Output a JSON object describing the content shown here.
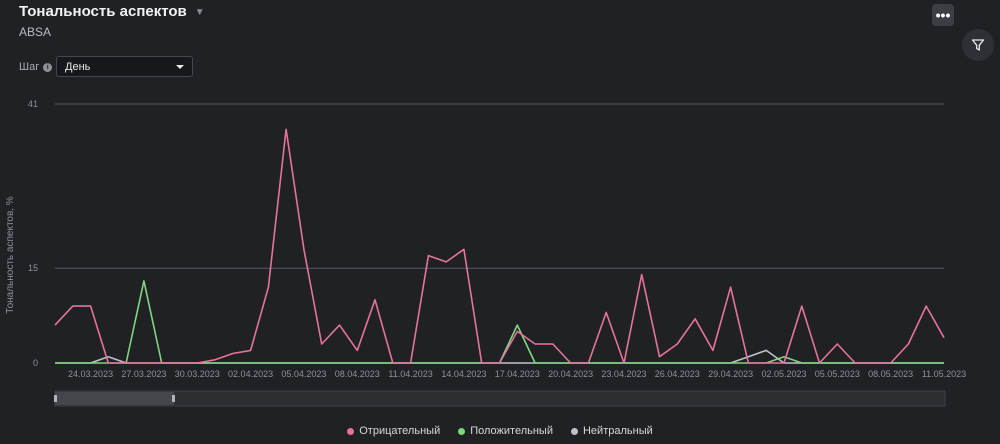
{
  "header": {
    "title": "Тональность аспектов",
    "subtitle": "ABSA",
    "menu_icon": "ellipsis-icon",
    "filter_icon": "filter-icon"
  },
  "controls": {
    "step_label": "Шаг",
    "step_value": "День"
  },
  "colors": {
    "background": "#1f2124",
    "negative": "#e5739e",
    "positive": "#7ed67e",
    "neutral": "#bfc2c6",
    "grid": "#55585c"
  },
  "chart_data": {
    "type": "line",
    "ylabel": "Тональность аспектов, %",
    "xlabel": "",
    "ylim": [
      0,
      41
    ],
    "yticks": [
      0,
      15,
      41
    ],
    "grid": true,
    "legend_position": "bottom-center",
    "x": [
      "22.03.2023",
      "23.03.2023",
      "24.03.2023",
      "25.03.2023",
      "26.03.2023",
      "27.03.2023",
      "28.03.2023",
      "29.03.2023",
      "30.03.2023",
      "31.03.2023",
      "01.04.2023",
      "02.04.2023",
      "03.04.2023",
      "04.04.2023",
      "05.04.2023",
      "06.04.2023",
      "07.04.2023",
      "08.04.2023",
      "09.04.2023",
      "10.04.2023",
      "11.04.2023",
      "12.04.2023",
      "13.04.2023",
      "14.04.2023",
      "15.04.2023",
      "16.04.2023",
      "17.04.2023",
      "18.04.2023",
      "19.04.2023",
      "20.04.2023",
      "21.04.2023",
      "22.04.2023",
      "23.04.2023",
      "24.04.2023",
      "25.04.2023",
      "26.04.2023",
      "27.04.2023",
      "28.04.2023",
      "29.04.2023",
      "30.04.2023",
      "01.05.2023",
      "02.05.2023",
      "03.05.2023",
      "04.05.2023",
      "05.05.2023",
      "06.05.2023",
      "07.05.2023",
      "08.05.2023",
      "09.05.2023",
      "10.05.2023",
      "11.05.2023"
    ],
    "xtick_labels": [
      "24.03.2023",
      "27.03.2023",
      "30.03.2023",
      "02.04.2023",
      "05.04.2023",
      "08.04.2023",
      "11.04.2023",
      "14.04.2023",
      "17.04.2023",
      "20.04.2023",
      "23.04.2023",
      "26.04.2023",
      "29.04.2023",
      "02.05.2023",
      "05.05.2023",
      "08.05.2023",
      "11.05.2023"
    ],
    "series": [
      {
        "name": "Отрицательный",
        "color": "#e5739e",
        "values": [
          6,
          9,
          9,
          0,
          0,
          0,
          0,
          0,
          0,
          0.5,
          1.5,
          2,
          12,
          37,
          18,
          3,
          6,
          2,
          10,
          0,
          0,
          17,
          16,
          18,
          0,
          0,
          5,
          3,
          3,
          0,
          0,
          8,
          0,
          14,
          1,
          3,
          7,
          2,
          12,
          0,
          0,
          0,
          9,
          0,
          3,
          0,
          0,
          0,
          3,
          9,
          4
        ]
      },
      {
        "name": "Положительный",
        "color": "#7ed67e",
        "values": [
          0,
          0,
          0,
          0,
          0,
          13,
          0,
          0,
          0,
          0,
          0,
          0,
          0,
          0,
          0,
          0,
          0,
          0,
          0,
          0,
          0,
          0,
          0,
          0,
          0,
          0,
          6,
          0,
          0,
          0,
          0,
          0,
          0,
          0,
          0,
          0,
          0,
          0,
          0,
          0,
          0,
          1,
          0,
          0,
          0,
          0,
          0,
          0,
          0,
          0,
          0
        ]
      },
      {
        "name": "Нейтральный",
        "color": "#bfc2c6",
        "values": [
          0,
          0,
          0,
          1,
          0,
          0,
          0,
          0,
          0,
          0,
          0,
          0,
          0,
          0,
          0,
          0,
          0,
          0,
          0,
          0,
          0,
          0,
          0,
          0,
          0,
          0,
          0,
          0,
          0,
          0,
          0,
          0,
          0,
          0,
          0,
          0,
          0,
          0,
          0,
          1,
          2,
          0,
          0,
          0,
          0,
          0,
          0,
          0,
          0,
          0,
          0
        ]
      }
    ]
  }
}
